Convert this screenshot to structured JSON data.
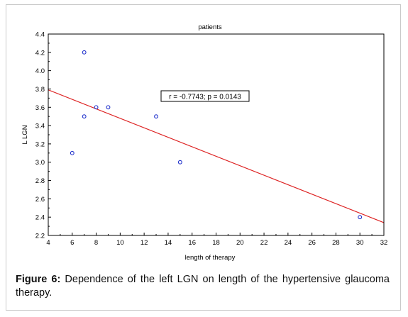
{
  "caption": {
    "lead": "Figure 6:",
    "text": " Dependence of the left LGN on length of the hypertensive glaucoma therapy."
  },
  "colors": {
    "points": "#2233cc",
    "regression_line": "#dd2222",
    "axes": "#000000"
  },
  "chart_data": {
    "type": "scatter",
    "title": "patients",
    "xlabel": "length of therapy",
    "ylabel": "L LGN",
    "xlim": [
      4,
      32
    ],
    "ylim": [
      2.2,
      4.4
    ],
    "xticks": [
      4,
      6,
      8,
      10,
      12,
      14,
      16,
      18,
      20,
      22,
      24,
      26,
      28,
      30,
      32
    ],
    "yticks": [
      2.2,
      2.4,
      2.6,
      2.8,
      3.0,
      3.2,
      3.4,
      3.6,
      3.8,
      4.0,
      4.2,
      4.4
    ],
    "tick_labels_x": [
      "4",
      "6",
      "8",
      "10",
      "12",
      "14",
      "16",
      "18",
      "20",
      "22",
      "24",
      "26",
      "28",
      "30",
      "32"
    ],
    "tick_labels_y": [
      "2.2",
      "2.4",
      "2.6",
      "2.8",
      "3.0",
      "3.2",
      "3.4",
      "3.6",
      "3.8",
      "4.0",
      "4.2",
      "4.4"
    ],
    "grid": false,
    "points": [
      {
        "x": 6,
        "y": 3.1
      },
      {
        "x": 7,
        "y": 4.2
      },
      {
        "x": 7,
        "y": 3.5
      },
      {
        "x": 8,
        "y": 3.6
      },
      {
        "x": 9,
        "y": 3.6
      },
      {
        "x": 13,
        "y": 3.5
      },
      {
        "x": 15,
        "y": 3.0
      },
      {
        "x": 30,
        "y": 2.4
      }
    ],
    "regression_line": {
      "x": [
        4,
        32
      ],
      "y": [
        3.79,
        2.34
      ]
    },
    "annotation": "r = -0.7743; p = 0.0143"
  }
}
